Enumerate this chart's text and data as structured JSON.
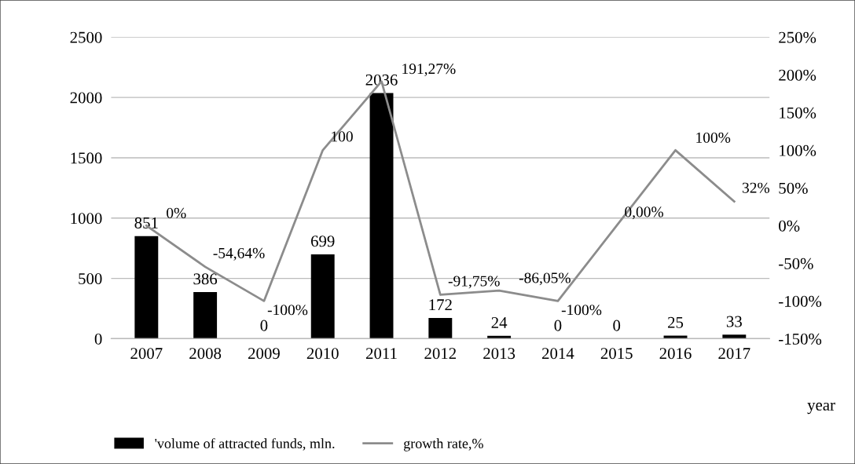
{
  "chart_data": {
    "type": "bar",
    "categories": [
      "2007",
      "2008",
      "2009",
      "2010",
      "2011",
      "2012",
      "2013",
      "2014",
      "2015",
      "2016",
      "2017"
    ],
    "xlabel": "year",
    "series": [
      {
        "name": "'volume of attracted funds, mln.",
        "color": "#000000",
        "values": [
          851,
          386,
          0,
          699,
          2036,
          172,
          24,
          0,
          0,
          25,
          33
        ],
        "value_labels": [
          "851",
          "386",
          "0",
          "699",
          "2036",
          "172",
          "24",
          "0",
          "0",
          "25",
          "33"
        ]
      },
      {
        "name": "growth rate,%",
        "type": "line",
        "axis": "y2",
        "color": "#8c8c8c",
        "values": [
          0,
          -54.64,
          -100,
          100,
          191.27,
          -91.75,
          -86.05,
          -100,
          0,
          100,
          32
        ],
        "value_labels": [
          "0%",
          "-54,64%",
          "-100%",
          "100",
          "191,27%",
          "-91,75%",
          "-86,05%",
          "-100%",
          "0,00%",
          "100%",
          "32%"
        ]
      }
    ],
    "ylim": [
      0,
      2500
    ],
    "yticks": [
      0,
      500,
      1000,
      1500,
      2000,
      2500
    ],
    "y2lim": [
      -150,
      250
    ],
    "y2ticks": [
      {
        "value": -150,
        "label": "-150%"
      },
      {
        "value": -100,
        "label": "-100%"
      },
      {
        "value": -50,
        "label": "-50%"
      },
      {
        "value": 0,
        "label": "0%"
      },
      {
        "value": 50,
        "label": "50%"
      },
      {
        "value": 100,
        "label": "100%"
      },
      {
        "value": 150,
        "label": "150%"
      },
      {
        "value": 200,
        "label": "200%"
      },
      {
        "value": 250,
        "label": "250%"
      }
    ],
    "grid": "y",
    "legend": "bottom"
  }
}
